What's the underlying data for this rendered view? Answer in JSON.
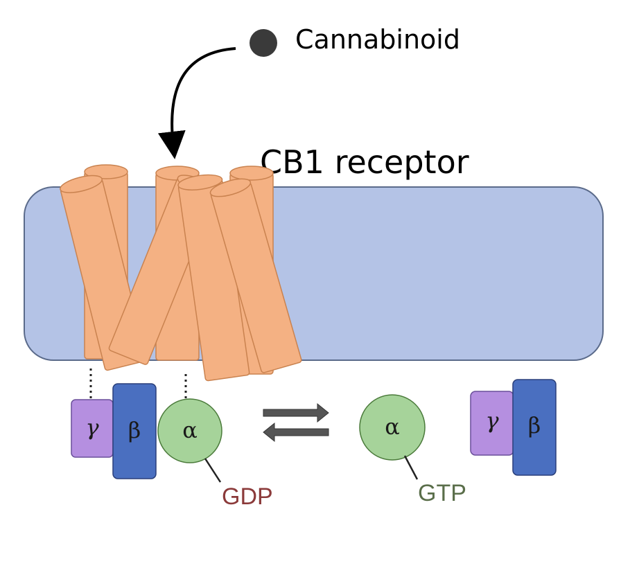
{
  "ligand": {
    "label": "Cannabinoid",
    "color": "#3a3a3a"
  },
  "receptor": {
    "label": "CB1 receptor",
    "helix_color": "#f4b183",
    "helix_stroke": "#c9824f"
  },
  "membrane": {
    "color": "#b4c3e6",
    "stroke": "#5a6a8a"
  },
  "g_protein_bound": {
    "gamma": "γ",
    "beta": "β",
    "alpha": "α",
    "nucleotide": "GDP",
    "nucleotide_color": "#8b3a3a"
  },
  "g_protein_free": {
    "gamma": "γ",
    "beta": "β",
    "alpha": "α",
    "nucleotide": "GTP",
    "nucleotide_color": "#5a6e4a"
  },
  "colors": {
    "gamma": "#b58fe0",
    "beta": "#4a6fc0",
    "alpha": "#a6d39a",
    "arrow": "#555555"
  }
}
